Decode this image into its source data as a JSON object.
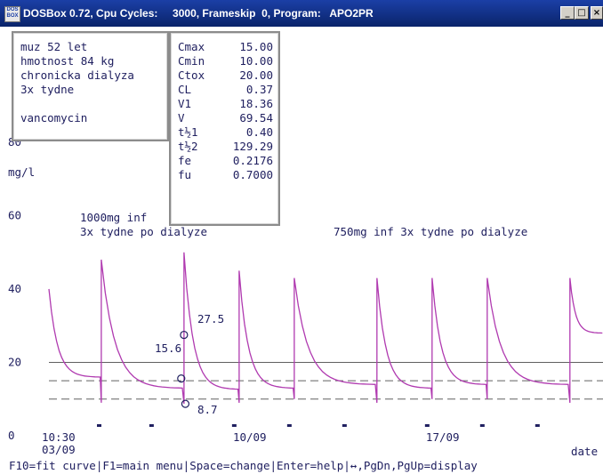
{
  "window": {
    "title": "DOSBox 0.72, Cpu Cycles:     3000, Frameskip  0, Program:   APO2PR",
    "icon": "dosbox-icon",
    "controls": {
      "minimize": "_",
      "maximize": "□",
      "close": "×"
    }
  },
  "patient": {
    "lines": [
      "muz 52 let",
      "hmotnost 84 kg",
      "chronicka dialyza",
      "3x tydne",
      "",
      "vancomycin"
    ]
  },
  "parameters": [
    {
      "name": "Cmax",
      "value": "15.00"
    },
    {
      "name": "Cmin",
      "value": "10.00"
    },
    {
      "name": "Ctox",
      "value": "20.00"
    },
    {
      "name": "CL",
      "value": "0.37"
    },
    {
      "name": "V1",
      "value": "18.36"
    },
    {
      "name": "V",
      "value": "69.54"
    },
    {
      "name": "t½1",
      "value": "0.40"
    },
    {
      "name": "t½2",
      "value": "129.29"
    },
    {
      "name": "fe",
      "value": "0.2176"
    },
    {
      "name": "fu",
      "value": "0.7000"
    }
  ],
  "plot": {
    "ylabel": "mg/l",
    "annotations": {
      "dose1_line1": "1000mg inf",
      "dose1_line2": "3x tydne po dialyze",
      "dose2": "750mg inf 3x tydne po dialyze"
    },
    "markers": {
      "peak": "27.5",
      "mid": "15.6",
      "trough": "8.7"
    }
  },
  "chart_data": {
    "type": "line",
    "ylabel": "mg/l",
    "xlabel": "date",
    "y_ticks": [
      "0",
      "20",
      "40",
      "60",
      "80"
    ],
    "ylim": [
      0,
      80
    ],
    "x_ticks": [
      {
        "label": "10:30",
        "sub": "03/09",
        "day": 0
      },
      {
        "label": "10/09",
        "sub": "",
        "day": 7
      },
      {
        "label": "17/09",
        "sub": "",
        "day": 14
      }
    ],
    "xlim_days": [
      0,
      20.1
    ],
    "reference_lines": [
      {
        "label": "Ctox",
        "value": 20,
        "style": "solid"
      },
      {
        "label": "Cmax",
        "value": 15,
        "style": "dashed"
      },
      {
        "label": "Cmin",
        "value": 10,
        "style": "dashed"
      }
    ],
    "doses": [
      {
        "day": 0.0,
        "peak": 40,
        "trough": 12
      },
      {
        "day": 1.9,
        "peak": 48,
        "trough": 9
      },
      {
        "day": 4.9,
        "peak": 50,
        "trough": 8.7
      },
      {
        "day": 6.9,
        "peak": 45,
        "trough": 9
      },
      {
        "day": 8.9,
        "peak": 43,
        "trough": 10
      },
      {
        "day": 11.9,
        "peak": 43,
        "trough": 9
      },
      {
        "day": 13.9,
        "peak": 43,
        "trough": 10
      },
      {
        "day": 15.9,
        "peak": 43,
        "trough": 10
      },
      {
        "day": 18.9,
        "peak": 43,
        "trough": 9
      }
    ],
    "marked_points": [
      {
        "day": 4.9,
        "value": 27.5,
        "label": "27.5"
      },
      {
        "day": 4.8,
        "value": 15.6,
        "label": "15.6"
      },
      {
        "day": 4.95,
        "value": 8.7,
        "label": "8.7"
      }
    ],
    "dose_ticks_days": [
      0,
      1.9,
      4.9,
      6.9,
      8.9,
      11.9,
      13.9,
      15.9,
      18.9
    ]
  },
  "statusbar": "F10=fit curve|F1=main menu|Space=change|Enter=help|↔,PgDn,PgUp=display"
}
